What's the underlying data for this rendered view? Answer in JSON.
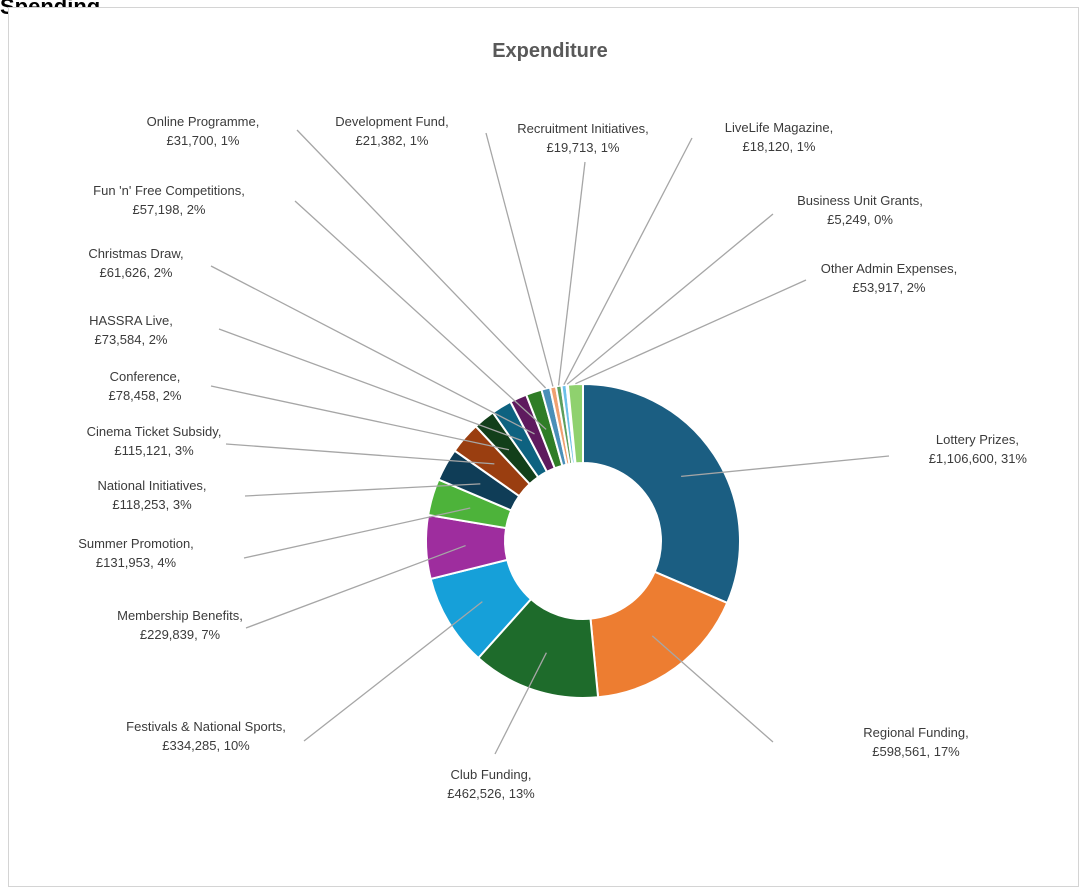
{
  "heading": "Spending",
  "chart_data": {
    "type": "doughnut",
    "title": "Expenditure",
    "currency": "£",
    "grid": false,
    "legend": "none",
    "slices": [
      {
        "name": "Lottery Prizes",
        "value": 1106600,
        "percent": "31%",
        "color": "#1b5e82",
        "label_line1": "Lottery Prizes,",
        "label_line2": "£1,106,600, 31%"
      },
      {
        "name": "Regional Funding",
        "value": 598561,
        "percent": "17%",
        "color": "#ed7d31",
        "label_line1": "Regional Funding,",
        "label_line2": "£598,561, 17%"
      },
      {
        "name": "Club Funding",
        "value": 462526,
        "percent": "13%",
        "color": "#1e6b2b",
        "label_line1": "Club Funding,",
        "label_line2": "£462,526, 13%"
      },
      {
        "name": "Festivals & National Sports",
        "value": 334285,
        "percent": "10%",
        "color": "#16a0d9",
        "label_line1": "Festivals & National Sports,",
        "label_line2": "£334,285, 10%"
      },
      {
        "name": "Membership Benefits",
        "value": 229839,
        "percent": "7%",
        "color": "#9e2d9e",
        "label_line1": "Membership Benefits,",
        "label_line2": "£229,839, 7%"
      },
      {
        "name": "Summer Promotion",
        "value": 131953,
        "percent": "4%",
        "color": "#4db33a",
        "label_line1": "Summer Promotion,",
        "label_line2": "£131,953, 4%"
      },
      {
        "name": "National Initiatives",
        "value": 118253,
        "percent": "3%",
        "color": "#0f3d57",
        "label_line1": "National Initiatives,",
        "label_line2": "£118,253, 3%"
      },
      {
        "name": "Cinema Ticket Subsidy",
        "value": 115121,
        "percent": "3%",
        "color": "#9a3e10",
        "label_line1": "Cinema Ticket Subsidy,",
        "label_line2": "£115,121, 3%"
      },
      {
        "name": "Conference",
        "value": 78458,
        "percent": "2%",
        "color": "#123f1a",
        "label_line1": "Conference,",
        "label_line2": "£78,458, 2%"
      },
      {
        "name": "HASSRA Live",
        "value": 73584,
        "percent": "2%",
        "color": "#0e6280",
        "label_line1": "HASSRA Live,",
        "label_line2": "£73,584, 2%"
      },
      {
        "name": "Christmas Draw",
        "value": 61626,
        "percent": "2%",
        "color": "#5e1a5e",
        "label_line1": "Christmas Draw,",
        "label_line2": "£61,626, 2%"
      },
      {
        "name": "Fun 'n' Free Competitions",
        "value": 57198,
        "percent": "2%",
        "color": "#2f7d26",
        "label_line1": "Fun 'n' Free Competitions,",
        "label_line2": "£57,198, 2%"
      },
      {
        "name": "Online Programme",
        "value": 31700,
        "percent": "1%",
        "color": "#4a8fb8",
        "label_line1": "Online Programme,",
        "label_line2": "£31,700, 1%"
      },
      {
        "name": "Development Fund",
        "value": 21382,
        "percent": "1%",
        "color": "#f0a070",
        "label_line1": "Development Fund,",
        "label_line2": "£21,382, 1%"
      },
      {
        "name": "Recruitment Initiatives",
        "value": 19713,
        "percent": "1%",
        "color": "#5c9e5c",
        "label_line1": "Recruitment Initiatives,",
        "label_line2": "£19,713, 1%"
      },
      {
        "name": "LiveLife Magazine",
        "value": 18120,
        "percent": "1%",
        "color": "#6cc0e8",
        "label_line1": "LiveLife Magazine,",
        "label_line2": "£18,120, 1%"
      },
      {
        "name": "Business Unit Grants",
        "value": 5249,
        "percent": "0%",
        "color": "#c77cc7",
        "label_line1": "Business Unit Grants,",
        "label_line2": "£5,249, 0%"
      },
      {
        "name": "Other Admin Expenses",
        "value": 53917,
        "percent": "2%",
        "color": "#8fd16e",
        "label_line1": "Other Admin Expenses,",
        "label_line2": "£53,917, 2%"
      }
    ]
  }
}
